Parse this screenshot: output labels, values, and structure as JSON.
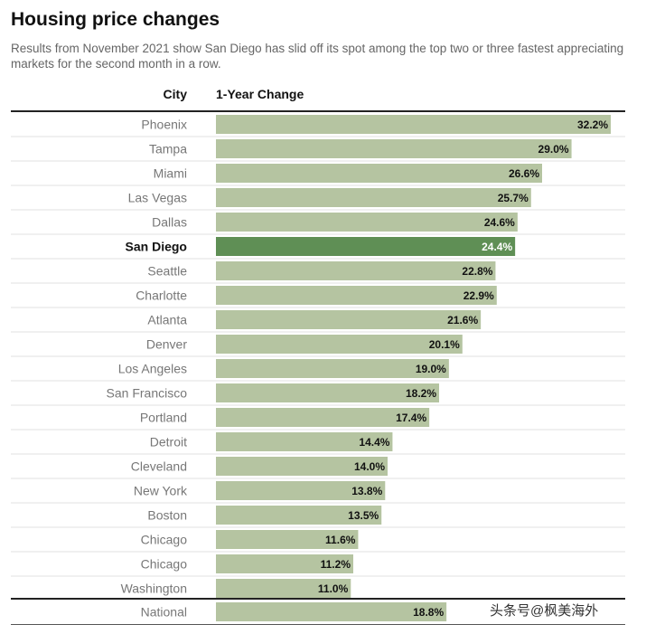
{
  "title": "Housing price changes",
  "subtitle": "Results from November 2021 show San Diego has slid off its spot among the top two or three fastest appreciating markets for the second month in a row.",
  "watermark": "头条号@枫美海外",
  "colors": {
    "bar": "#b5c4a1",
    "highlight": "#5f8f55",
    "rule": "#222222"
  },
  "chart_data": {
    "type": "bar",
    "orientation": "horizontal",
    "column_headers": {
      "category": "City",
      "value": "1-Year Change"
    },
    "categories": [
      "Phoenix",
      "Tampa",
      "Miami",
      "Las Vegas",
      "Dallas",
      "San Diego",
      "Seattle",
      "Charlotte",
      "Atlanta",
      "Denver",
      "Los Angeles",
      "San Francisco",
      "Portland",
      "Detroit",
      "Cleveland",
      "New York",
      "Boston",
      "Chicago",
      "Chicago",
      "Washington",
      "National"
    ],
    "values": [
      32.2,
      29.0,
      26.6,
      25.7,
      24.6,
      24.4,
      22.8,
      22.9,
      21.6,
      20.1,
      19.0,
      18.2,
      17.4,
      14.4,
      14.0,
      13.8,
      13.5,
      11.6,
      11.2,
      11.0,
      18.8
    ],
    "labels": [
      "32.2%",
      "29.0%",
      "26.6%",
      "25.7%",
      "24.6%",
      "24.4%",
      "22.8%",
      "22.9%",
      "21.6%",
      "20.1%",
      "19.0%",
      "18.2%",
      "17.4%",
      "14.4%",
      "14.0%",
      "13.8%",
      "13.5%",
      "11.6%",
      "11.2%",
      "11.0%",
      "18.8%"
    ],
    "highlight": "San Diego",
    "summary_row": "National",
    "xlim": [
      0,
      32.2
    ]
  }
}
